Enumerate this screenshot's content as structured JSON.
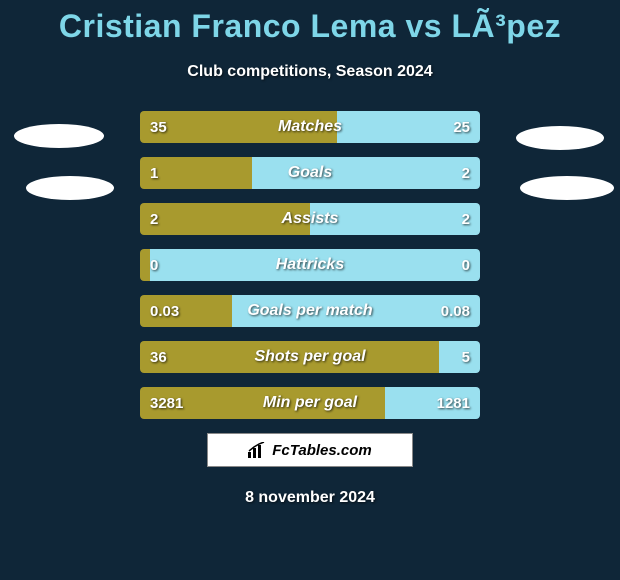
{
  "title": "Cristian Franco Lema vs LÃ³pez",
  "subtitle": "Club competitions, Season 2024",
  "date": "8 november 2024",
  "watermark": "FcTables.com",
  "colors": {
    "background": "#0f2638",
    "title": "#7ed6e8",
    "left_bar": "#a89a2e",
    "right_bar": "#9ae0ef",
    "text": "#ffffff"
  },
  "bars": [
    {
      "label": "Matches",
      "left_val": "35",
      "right_val": "25",
      "left_pct": 58,
      "right_pct": 42
    },
    {
      "label": "Goals",
      "left_val": "1",
      "right_val": "2",
      "left_pct": 33,
      "right_pct": 67
    },
    {
      "label": "Assists",
      "left_val": "2",
      "right_val": "2",
      "left_pct": 50,
      "right_pct": 50
    },
    {
      "label": "Hattricks",
      "left_val": "0",
      "right_val": "0",
      "left_pct": 3,
      "right_pct": 97
    },
    {
      "label": "Goals per match",
      "left_val": "0.03",
      "right_val": "0.08",
      "left_pct": 27,
      "right_pct": 73
    },
    {
      "label": "Shots per goal",
      "left_val": "36",
      "right_val": "5",
      "left_pct": 88,
      "right_pct": 12
    },
    {
      "label": "Min per goal",
      "left_val": "3281",
      "right_val": "1281",
      "left_pct": 72,
      "right_pct": 28
    }
  ]
}
